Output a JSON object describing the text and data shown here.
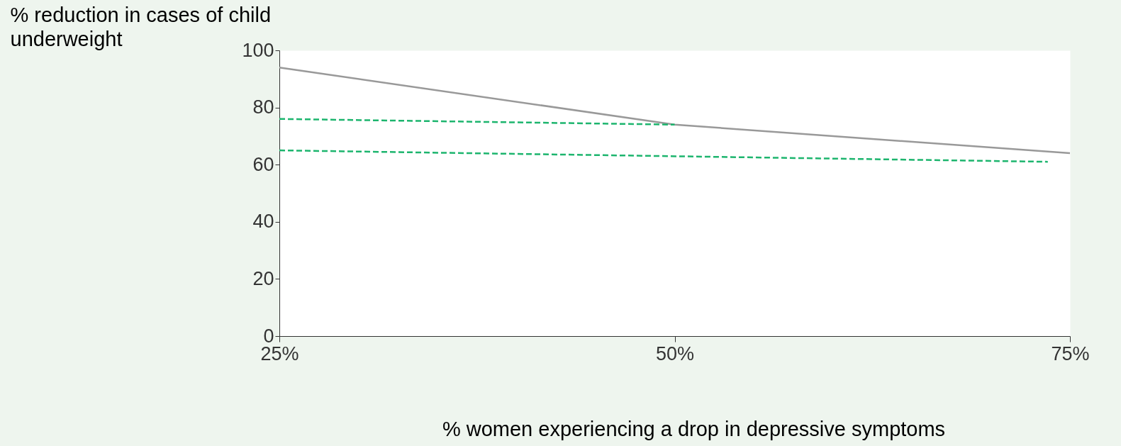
{
  "chart_data": {
    "type": "line",
    "xlabel": "% women experiencing a drop in depressive symptoms",
    "ylabel": "% reduction in cases of child underweight",
    "xlim": [
      25,
      75
    ],
    "ylim": [
      0,
      100
    ],
    "xticks": [
      {
        "value": 25,
        "label": "25%"
      },
      {
        "value": 50,
        "label": "50%"
      },
      {
        "value": 75,
        "label": "75%"
      }
    ],
    "yticks": [
      0,
      20,
      40,
      60,
      80,
      100
    ],
    "grid": false,
    "series": [
      {
        "color": "#999999",
        "x": [
          25,
          50,
          75
        ],
        "values": [
          94,
          74,
          64
        ],
        "line_style": "solid"
      },
      {
        "color": "#1db56e",
        "x": [
          25,
          50
        ],
        "values": [
          76,
          74
        ],
        "line_style": "dashed"
      },
      {
        "color": "#1db56e",
        "x": [
          25,
          73.6
        ],
        "values": [
          65,
          61
        ],
        "line_style": "dashed"
      }
    ]
  }
}
